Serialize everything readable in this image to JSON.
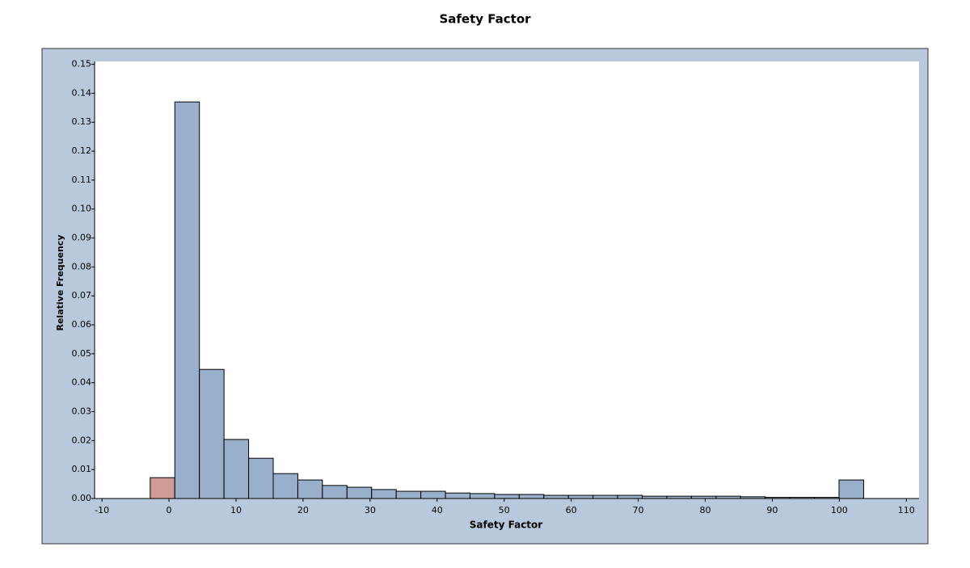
{
  "chart_data": {
    "type": "histogram",
    "title": "Safety Factor",
    "x_label": "Safety Factor",
    "y_label": "Relative Frequency",
    "bins": [
      -2.8,
      0.87,
      4.54,
      8.21,
      11.88,
      15.55,
      19.22,
      22.89,
      26.56,
      30.23,
      33.9,
      37.57,
      41.24,
      44.91,
      48.58,
      52.25,
      55.92,
      59.59,
      63.26,
      66.93,
      70.6,
      74.27,
      77.94,
      81.61,
      85.28,
      88.95,
      92.62,
      96.29,
      99.96,
      103.63
    ],
    "values": [
      0.0072,
      0.137,
      0.0446,
      0.0204,
      0.0139,
      0.0086,
      0.0064,
      0.0045,
      0.0039,
      0.0031,
      0.0025,
      0.0025,
      0.0019,
      0.0017,
      0.0014,
      0.0014,
      0.0011,
      0.0011,
      0.0011,
      0.0011,
      0.0008,
      0.0008,
      0.0008,
      0.0008,
      0.0006,
      0.0004,
      0.0004,
      0.0004,
      0.0064
    ],
    "bar_colors": [
      "#d09a96",
      "#98b0cc",
      "#98b0cc",
      "#98b0cc",
      "#98b0cc",
      "#98b0cc",
      "#98b0cc",
      "#98b0cc",
      "#98b0cc",
      "#98b0cc",
      "#98b0cc",
      "#98b0cc",
      "#98b0cc",
      "#98b0cc",
      "#98b0cc",
      "#98b0cc",
      "#98b0cc",
      "#98b0cc",
      "#98b0cc",
      "#98b0cc",
      "#98b0cc",
      "#98b0cc",
      "#98b0cc",
      "#98b0cc",
      "#98b0cc",
      "#98b0cc",
      "#98b0cc",
      "#98b0cc",
      "#98b0cc"
    ],
    "xlim": [
      -11.1,
      111.9
    ],
    "ylim": [
      0,
      0.151
    ],
    "xticks": [
      -10,
      0,
      10,
      20,
      30,
      40,
      50,
      60,
      70,
      80,
      90,
      100,
      110
    ],
    "yticks": [
      {
        "value": 0,
        "label": "0.00"
      },
      0.01,
      0.02,
      0.03,
      0.04,
      0.05,
      0.06,
      0.07,
      0.08,
      0.09,
      {
        "value": 0.1,
        "label": "0.10"
      },
      0.11,
      0.12,
      0.13,
      0.14,
      0.15
    ]
  }
}
